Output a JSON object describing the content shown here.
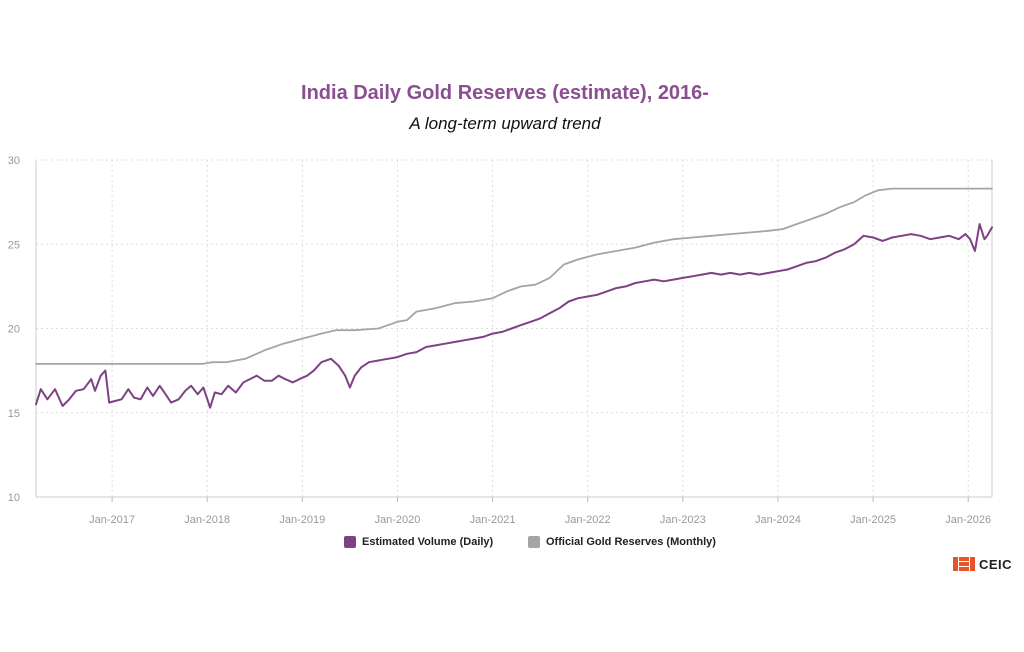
{
  "chart_data": {
    "type": "line",
    "title": "India Daily Gold Reserves (estimate), 2016-",
    "subtitle": "A long-term upward trend",
    "xlabel": "",
    "ylabel": "",
    "xlim": [
      2016.2,
      2026.25
    ],
    "ylim": [
      10,
      30
    ],
    "y_ticks": [
      10,
      15,
      20,
      25,
      30
    ],
    "x_ticks": [
      {
        "label": "Jan-2017",
        "value": 2017
      },
      {
        "label": "Jan-2018",
        "value": 2018
      },
      {
        "label": "Jan-2019",
        "value": 2019
      },
      {
        "label": "Jan-2020",
        "value": 2020
      },
      {
        "label": "Jan-2021",
        "value": 2021
      },
      {
        "label": "Jan-2022",
        "value": 2022
      },
      {
        "label": "Jan-2023",
        "value": 2023
      },
      {
        "label": "Jan-2024",
        "value": 2024
      },
      {
        "label": "Jan-2025",
        "value": 2025
      },
      {
        "label": "Jan-2026",
        "value": 2026
      }
    ],
    "grid": true,
    "legend_position": "bottom-center",
    "series": [
      {
        "name": "Estimated Volume (Daily)",
        "color": "#7d4284",
        "x": [
          2016.2,
          2016.25,
          2016.32,
          2016.4,
          2016.48,
          2016.55,
          2016.62,
          2016.7,
          2016.78,
          2016.82,
          2016.88,
          2016.93,
          2016.97,
          2017.03,
          2017.1,
          2017.17,
          2017.23,
          2017.3,
          2017.37,
          2017.43,
          2017.5,
          2017.55,
          2017.62,
          2017.7,
          2017.77,
          2017.83,
          2017.9,
          2017.96,
          2018.03,
          2018.08,
          2018.15,
          2018.22,
          2018.3,
          2018.38,
          2018.45,
          2018.52,
          2018.6,
          2018.68,
          2018.75,
          2018.82,
          2018.9,
          2018.97,
          2019.05,
          2019.12,
          2019.2,
          2019.3,
          2019.38,
          2019.45,
          2019.5,
          2019.55,
          2019.62,
          2019.7,
          2019.8,
          2019.9,
          2020.0,
          2020.1,
          2020.2,
          2020.3,
          2020.4,
          2020.5,
          2020.6,
          2020.7,
          2020.8,
          2020.9,
          2021.0,
          2021.1,
          2021.2,
          2021.3,
          2021.4,
          2021.5,
          2021.6,
          2021.7,
          2021.8,
          2021.9,
          2022.0,
          2022.1,
          2022.2,
          2022.3,
          2022.4,
          2022.5,
          2022.6,
          2022.7,
          2022.8,
          2022.9,
          2023.0,
          2023.1,
          2023.2,
          2023.3,
          2023.4,
          2023.5,
          2023.6,
          2023.7,
          2023.8,
          2023.9,
          2024.0,
          2024.1,
          2024.2,
          2024.3,
          2024.4,
          2024.5,
          2024.6,
          2024.7,
          2024.8,
          2024.9,
          2025.0,
          2025.1,
          2025.2,
          2025.3,
          2025.4,
          2025.5,
          2025.6,
          2025.7,
          2025.8,
          2025.9,
          2025.97,
          2026.02,
          2026.07,
          2026.12,
          2026.17,
          2026.2,
          2026.25
        ],
        "y": [
          15.5,
          16.4,
          15.8,
          16.4,
          15.4,
          15.8,
          16.3,
          16.4,
          17.0,
          16.3,
          17.2,
          17.5,
          15.6,
          15.7,
          15.8,
          16.4,
          15.9,
          15.8,
          16.5,
          16.0,
          16.6,
          16.2,
          15.6,
          15.8,
          16.3,
          16.6,
          16.1,
          16.5,
          15.3,
          16.2,
          16.1,
          16.6,
          16.2,
          16.8,
          17.0,
          17.2,
          16.9,
          16.9,
          17.2,
          17.0,
          16.8,
          17.0,
          17.2,
          17.5,
          18.0,
          18.2,
          17.8,
          17.2,
          16.5,
          17.2,
          17.7,
          18.0,
          18.1,
          18.2,
          18.3,
          18.5,
          18.6,
          18.9,
          19.0,
          19.1,
          19.2,
          19.3,
          19.4,
          19.5,
          19.7,
          19.8,
          20.0,
          20.2,
          20.4,
          20.6,
          20.9,
          21.2,
          21.6,
          21.8,
          21.9,
          22.0,
          22.2,
          22.4,
          22.5,
          22.7,
          22.8,
          22.9,
          22.8,
          22.9,
          23.0,
          23.1,
          23.2,
          23.3,
          23.2,
          23.3,
          23.2,
          23.3,
          23.2,
          23.3,
          23.4,
          23.5,
          23.7,
          23.9,
          24.0,
          24.2,
          24.5,
          24.7,
          25.0,
          25.5,
          25.4,
          25.2,
          25.4,
          25.5,
          25.6,
          25.5,
          25.3,
          25.4,
          25.5,
          25.3,
          25.6,
          25.3,
          24.6,
          26.2,
          25.3,
          25.5,
          26.0
        ]
      },
      {
        "name": "Official Gold Reserves (Monthly)",
        "color": "#a6a4a6",
        "x": [
          2016.2,
          2017.0,
          2017.5,
          2017.95,
          2018.05,
          2018.2,
          2018.4,
          2018.6,
          2018.8,
          2019.0,
          2019.2,
          2019.35,
          2019.55,
          2019.8,
          2020.0,
          2020.1,
          2020.2,
          2020.4,
          2020.6,
          2020.8,
          2021.0,
          2021.15,
          2021.3,
          2021.45,
          2021.6,
          2021.75,
          2021.9,
          2022.1,
          2022.3,
          2022.5,
          2022.7,
          2022.9,
          2023.1,
          2023.3,
          2023.5,
          2023.7,
          2023.9,
          2024.05,
          2024.2,
          2024.35,
          2024.5,
          2024.65,
          2024.8,
          2024.92,
          2025.05,
          2025.2,
          2025.4,
          2025.6,
          2025.8,
          2026.0,
          2026.25
        ],
        "y": [
          17.9,
          17.9,
          17.9,
          17.9,
          18.0,
          18.0,
          18.2,
          18.7,
          19.1,
          19.4,
          19.7,
          19.9,
          19.9,
          20.0,
          20.4,
          20.5,
          21.0,
          21.2,
          21.5,
          21.6,
          21.8,
          22.2,
          22.5,
          22.6,
          23.0,
          23.8,
          24.1,
          24.4,
          24.6,
          24.8,
          25.1,
          25.3,
          25.4,
          25.5,
          25.6,
          25.7,
          25.8,
          25.9,
          26.2,
          26.5,
          26.8,
          27.2,
          27.5,
          27.9,
          28.2,
          28.3,
          28.3,
          28.3,
          28.3,
          28.3,
          28.3
        ]
      }
    ]
  },
  "brand": {
    "name": "CEIC",
    "color": "#e8532a"
  }
}
